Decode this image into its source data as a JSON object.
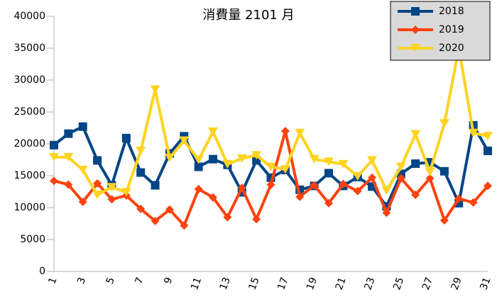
{
  "chart_data": {
    "type": "line",
    "title": "消費量 2101 月",
    "categories": [
      "1",
      null,
      "3",
      null,
      "5",
      null,
      "7",
      null,
      "9",
      null,
      "11",
      null,
      "13",
      null,
      "15",
      null,
      "17",
      null,
      "19",
      null,
      "21",
      null,
      "23",
      null,
      "25",
      null,
      "27",
      null,
      "29",
      null,
      "31"
    ],
    "series": [
      {
        "name": "2018",
        "color": "#004586",
        "marker": "square",
        "values": [
          19800,
          21600,
          22700,
          17400,
          13500,
          20900,
          15500,
          13500,
          18500,
          21200,
          16400,
          17600,
          16700,
          12400,
          17400,
          14700,
          15900,
          12800,
          13400,
          15400,
          13400,
          14800,
          13300,
          10200,
          15300,
          16900,
          17100,
          15700,
          10700,
          22900,
          18900
        ]
      },
      {
        "name": "2019",
        "color": "#ff420e",
        "marker": "diamond",
        "values": [
          14200,
          13600,
          10900,
          13800,
          11300,
          11900,
          9800,
          7900,
          9700,
          7200,
          12900,
          11600,
          8500,
          13100,
          8200,
          13600,
          22000,
          11700,
          13500,
          10700,
          13700,
          12600,
          14700,
          9200,
          14600,
          12000,
          14600,
          8000,
          11400,
          10800,
          13400
        ]
      },
      {
        "name": "2020",
        "color": "#ffd320",
        "marker": "triangle-down",
        "values": [
          17900,
          17900,
          15900,
          12000,
          13200,
          12400,
          18900,
          28500,
          17800,
          20500,
          17500,
          21900,
          16800,
          17700,
          18200,
          16400,
          16000,
          21700,
          17600,
          17200,
          16800,
          14900,
          17400,
          12700,
          16400,
          21500,
          15600,
          23200,
          35000,
          21700,
          21200
        ]
      }
    ],
    "ylim": [
      0,
      40000
    ],
    "yticks": [
      0,
      5000,
      10000,
      15000,
      20000,
      25000,
      30000,
      35000,
      40000
    ]
  }
}
